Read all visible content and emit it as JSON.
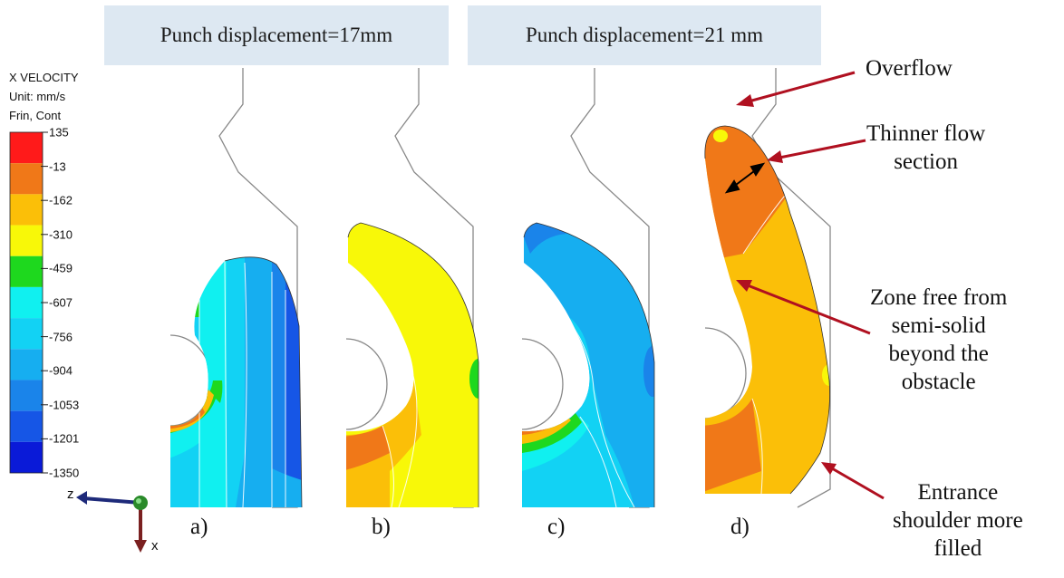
{
  "headers": [
    "Punch displacement=17mm",
    "Punch displacement=21 mm"
  ],
  "legend": {
    "title_lines": [
      "X VELOCITY",
      "Unit: mm/s",
      "Frin, Cont"
    ],
    "ticks": [
      "135",
      "-13",
      "-162",
      "-310",
      "-459",
      "-607",
      "-756",
      "-904",
      "-1053",
      "-1201",
      "-1350"
    ],
    "colors": [
      "#ff1a1a",
      "#f07818",
      "#fbbf08",
      "#f8f808",
      "#1ed81e",
      "#10f0f0",
      "#12d2f4",
      "#16aef0",
      "#1a84ea",
      "#1656e6",
      "#0a1ad8"
    ]
  },
  "subfig_labels": [
    "a)",
    "b)",
    "c)",
    "d)"
  ],
  "axes": {
    "z": "z",
    "x": "x"
  },
  "annotations": {
    "overflow": [
      "Overflow"
    ],
    "thinner": [
      "Thinner flow",
      "section"
    ],
    "zone": [
      "Zone free from",
      "semi-solid",
      "beyond the",
      "obstacle"
    ],
    "entrance": [
      "Entrance",
      "shoulder more",
      "filled"
    ]
  },
  "arrow_color": "#b01020"
}
